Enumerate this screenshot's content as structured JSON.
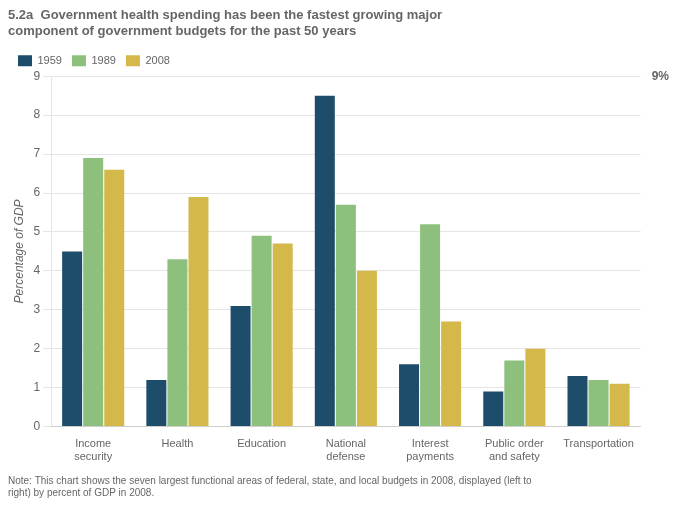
{
  "chart_data": {
    "type": "bar",
    "title": "5.2a  Government health spending has been the fastest growing major\ncomponent of government budgets for the past 50 years",
    "ylabel": "Percentage of GDP",
    "note": "Note: This chart shows the seven largest functional areas of federal, state, and local budgets in 2008, displayed (left to\nright) by percent of GDP in 2008.",
    "categories": [
      "Income\nsecurity",
      "Health",
      "Education",
      "National\ndefense",
      "Interest\npayments",
      "Public order\nand safety",
      "Transportation"
    ],
    "series": [
      {
        "name": "1959",
        "color": "#1e4d6b",
        "values": [
          4.5,
          1.2,
          3.1,
          8.5,
          1.6,
          0.9,
          1.3
        ]
      },
      {
        "name": "1989",
        "color": "#8dc07c",
        "values": [
          6.9,
          4.3,
          4.9,
          5.7,
          5.2,
          1.7,
          1.2
        ]
      },
      {
        "name": "2008",
        "color": "#d4b84a",
        "values": [
          6.6,
          5.9,
          4.7,
          4.0,
          2.7,
          2.0,
          1.1
        ]
      }
    ],
    "ylim": [
      0,
      9
    ],
    "yticks": [
      0,
      1,
      2,
      3,
      4,
      5,
      6,
      7,
      8,
      9
    ],
    "y2lim": [
      0,
      9
    ],
    "y2ticks": [
      {
        "value": 9,
        "label": "9%"
      }
    ],
    "grid": true,
    "legend": "upper left"
  }
}
